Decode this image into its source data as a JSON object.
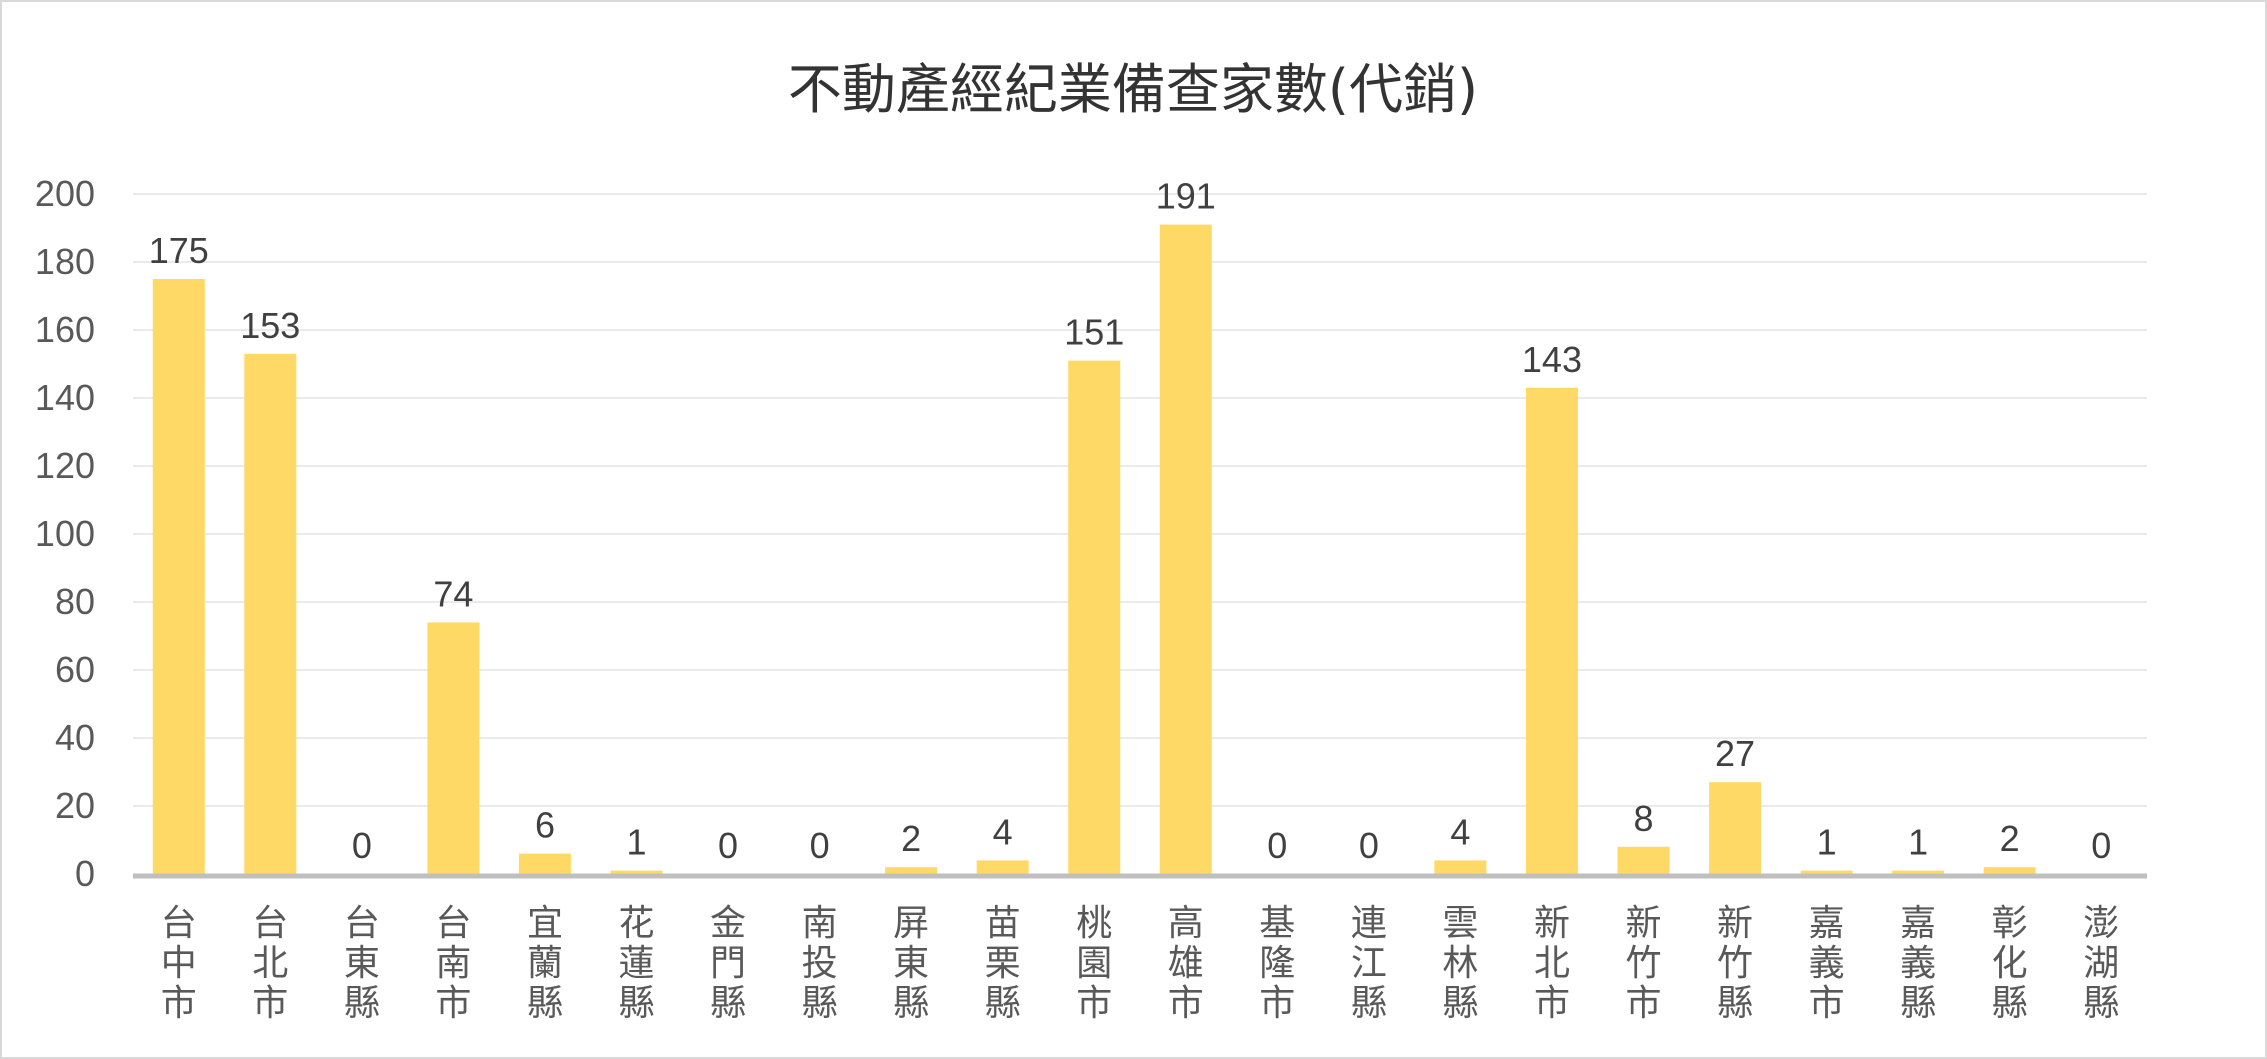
{
  "chart_data": {
    "type": "bar",
    "title": "不動產經紀業備查家數(代銷)",
    "categories": [
      "台中市",
      "台北市",
      "台東縣",
      "台南市",
      "宜蘭縣",
      "花蓮縣",
      "金門縣",
      "南投縣",
      "屏東縣",
      "苗栗縣",
      "桃園市",
      "高雄市",
      "基隆市",
      "連江縣",
      "雲林縣",
      "新北市",
      "新竹市",
      "新竹縣",
      "嘉義市",
      "嘉義縣",
      "彰化縣",
      "澎湖縣"
    ],
    "values": [
      175,
      153,
      0,
      74,
      6,
      1,
      0,
      0,
      2,
      4,
      151,
      191,
      0,
      0,
      4,
      143,
      8,
      27,
      1,
      1,
      2,
      0
    ],
    "yticks": [
      0,
      20,
      40,
      60,
      80,
      100,
      120,
      140,
      160,
      180,
      200
    ],
    "ylim": [
      0,
      200
    ],
    "grid": true,
    "legend": "none",
    "bar_color": "#FFD966",
    "gridline_color": "#EAEAEA",
    "axis_color": "#BFBFBF"
  }
}
